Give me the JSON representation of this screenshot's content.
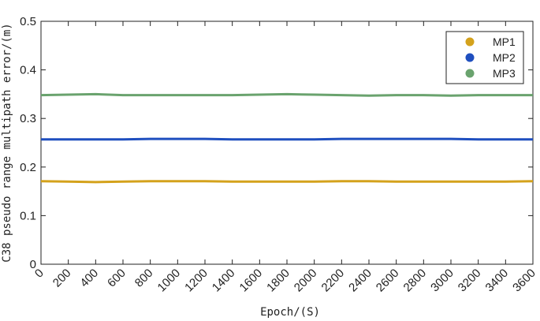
{
  "chart_data": {
    "type": "line",
    "title": "",
    "xlabel": "Epoch/(S)",
    "ylabel": "C38 pseudo range multipath error/(m)",
    "xlim": [
      0,
      3600
    ],
    "ylim": [
      0,
      0.5
    ],
    "xticks": [
      "0",
      "200",
      "400",
      "600",
      "800",
      "1000",
      "1200",
      "1400",
      "1600",
      "1800",
      "2000",
      "2200",
      "2400",
      "2600",
      "2800",
      "3000",
      "3200",
      "3400",
      "3600"
    ],
    "yticks": [
      "0",
      "0.1",
      "0.2",
      "0.3",
      "0.4",
      "0.5"
    ],
    "grid": false,
    "legend_position": "top-right",
    "x": [
      0,
      200,
      400,
      600,
      800,
      1000,
      1200,
      1400,
      1600,
      1800,
      2000,
      2200,
      2400,
      2600,
      2800,
      3000,
      3200,
      3400,
      3600
    ],
    "series": [
      {
        "name": "MP1",
        "color": "#d4a21c",
        "values": [
          0.171,
          0.17,
          0.169,
          0.17,
          0.171,
          0.171,
          0.171,
          0.17,
          0.17,
          0.17,
          0.17,
          0.171,
          0.171,
          0.17,
          0.17,
          0.17,
          0.17,
          0.17,
          0.171
        ]
      },
      {
        "name": "MP2",
        "color": "#1f4fbf",
        "values": [
          0.257,
          0.257,
          0.257,
          0.257,
          0.258,
          0.258,
          0.258,
          0.257,
          0.257,
          0.257,
          0.257,
          0.258,
          0.258,
          0.258,
          0.258,
          0.258,
          0.257,
          0.257,
          0.257
        ]
      },
      {
        "name": "MP3",
        "color": "#6aa36e",
        "values": [
          0.348,
          0.349,
          0.35,
          0.348,
          0.348,
          0.348,
          0.348,
          0.348,
          0.349,
          0.35,
          0.349,
          0.348,
          0.347,
          0.348,
          0.348,
          0.347,
          0.348,
          0.348,
          0.348
        ]
      }
    ]
  }
}
